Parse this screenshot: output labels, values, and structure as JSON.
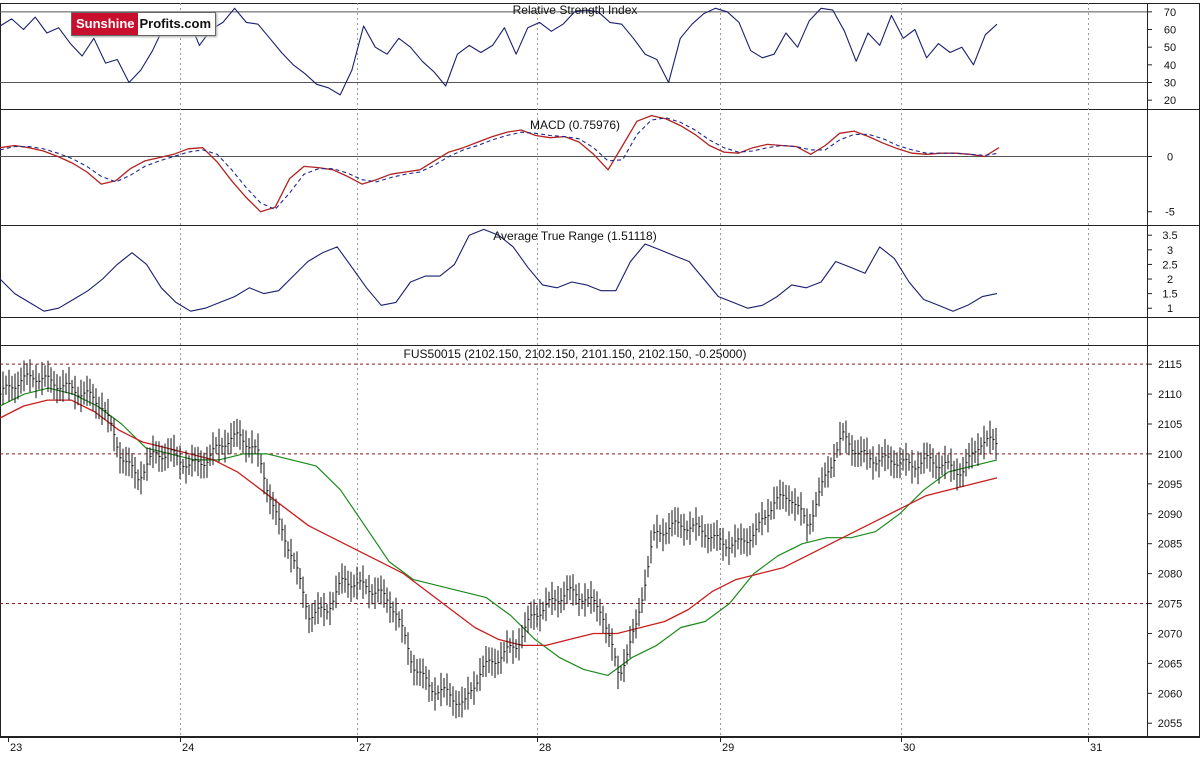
{
  "logo": {
    "part1": "Sunshine",
    "part2": "Profits.com"
  },
  "x_labels": [
    "23",
    "24",
    "27",
    "28",
    "29",
    "30",
    "31"
  ],
  "chart_data": [
    {
      "type": "line",
      "title": "Relative Strength Index",
      "yticks": [
        70,
        60,
        50,
        40,
        30,
        20
      ],
      "ylim": [
        15,
        75
      ],
      "reference_lines": [
        70,
        30
      ],
      "series": [
        {
          "values": [
            62,
            66,
            60,
            67,
            58,
            61,
            52,
            45,
            55,
            41,
            43,
            30,
            37,
            48,
            62,
            57,
            67,
            51,
            60,
            64,
            72,
            64,
            63,
            55,
            47,
            40,
            35,
            29,
            27,
            23,
            37,
            62,
            50,
            46,
            55,
            50,
            42,
            36,
            28,
            46,
            51,
            47,
            51,
            61,
            46,
            61,
            64,
            59,
            63,
            70,
            71,
            70,
            64,
            63,
            55,
            46,
            43,
            30,
            55,
            63,
            69,
            72,
            70,
            64,
            48,
            44,
            46,
            58,
            50,
            65,
            72,
            71,
            59,
            42,
            58,
            51,
            68,
            55,
            60,
            44,
            52,
            47,
            50,
            40,
            57,
            63
          ]
        }
      ]
    },
    {
      "type": "line",
      "title": "MACD (0.75976)",
      "yticks": [
        0,
        -5
      ],
      "ylim": [
        -6.2,
        4.3
      ],
      "reference_lines": [
        0
      ],
      "series": [
        {
          "values": [
            0.8,
            1.0,
            0.8,
            0.5,
            0.0,
            -0.6,
            -1.4,
            -2.5,
            -2.2,
            -1.1,
            -0.4,
            -0.1,
            0.2,
            0.7,
            0.8,
            -0.5,
            -2.2,
            -3.7,
            -5.0,
            -4.6,
            -2.0,
            -0.9,
            -1.0,
            -1.2,
            -1.8,
            -2.5,
            -2.1,
            -1.6,
            -1.4,
            -1.2,
            -0.4,
            0.4,
            0.8,
            1.3,
            1.8,
            2.2,
            2.4,
            1.9,
            1.7,
            1.8,
            1.3,
            0.2,
            -1.2,
            1.0,
            3.2,
            3.7,
            3.4,
            2.8,
            2.0,
            1.0,
            0.4,
            0.3,
            0.8,
            1.1,
            1.0,
            0.9,
            0.2,
            1.0,
            2.1,
            2.3,
            1.8,
            1.2,
            0.7,
            0.3,
            0.2,
            0.3,
            0.3,
            0.2,
            0.0,
            0.8
          ]
        },
        {
          "values": [
            0.6,
            0.9,
            0.9,
            0.7,
            0.3,
            -0.2,
            -0.9,
            -1.8,
            -2.3,
            -1.7,
            -0.9,
            -0.4,
            0.0,
            0.4,
            0.6,
            0.2,
            -1.2,
            -2.8,
            -4.2,
            -4.8,
            -3.3,
            -1.6,
            -1.1,
            -1.1,
            -1.5,
            -2.1,
            -2.3,
            -1.9,
            -1.6,
            -1.4,
            -0.8,
            0.0,
            0.6,
            1.0,
            1.5,
            1.9,
            2.2,
            2.1,
            1.9,
            1.8,
            1.6,
            0.8,
            -0.4,
            -0.3,
            2.0,
            3.3,
            3.5,
            3.1,
            2.4,
            1.5,
            0.8,
            0.4,
            0.5,
            0.8,
            1.0,
            0.9,
            0.6,
            0.6,
            1.5,
            2.0,
            2.0,
            1.6,
            1.0,
            0.6,
            0.3,
            0.3,
            0.3,
            0.2,
            0.1,
            0.3
          ]
        }
      ]
    },
    {
      "type": "line",
      "title": "Average True Range (1.51118)",
      "yticks": [
        3.5,
        3.0,
        2.5,
        2.0,
        1.5,
        1.0
      ],
      "ylim": [
        0.7,
        3.85
      ],
      "series": [
        {
          "values": [
            2.0,
            1.5,
            1.2,
            0.9,
            1.0,
            1.3,
            1.6,
            2.0,
            2.5,
            2.9,
            2.5,
            1.7,
            1.2,
            0.9,
            1.0,
            1.2,
            1.4,
            1.7,
            1.5,
            1.6,
            2.1,
            2.6,
            2.9,
            3.1,
            2.4,
            1.7,
            1.1,
            1.2,
            1.9,
            2.1,
            2.1,
            2.5,
            3.5,
            3.7,
            3.5,
            3.1,
            2.4,
            1.8,
            1.7,
            1.9,
            1.8,
            1.6,
            1.6,
            2.6,
            3.2,
            3.0,
            2.8,
            2.6,
            2.0,
            1.4,
            1.2,
            1.0,
            1.1,
            1.4,
            1.8,
            1.7,
            1.9,
            2.6,
            2.4,
            2.2,
            3.1,
            2.7,
            1.9,
            1.3,
            1.1,
            0.9,
            1.1,
            1.4,
            1.5
          ]
        }
      ]
    },
    {
      "type": "line",
      "title": "FUS50015 (2102.150, 2102.150, 2101.150, 2102.150, -0.25000)",
      "yticks": [
        2115,
        2110,
        2105,
        2100,
        2095,
        2090,
        2085,
        2080,
        2075,
        2070,
        2065,
        2060,
        2055
      ],
      "ylim": [
        2052.7,
        2118.2
      ],
      "reference_lines": [
        2115,
        2100,
        2075
      ],
      "series": [
        {
          "values": [
            2110,
            2112,
            2113,
            2112,
            2111,
            2110,
            2108,
            2100,
            2096,
            2100,
            2100,
            2098,
            2099,
            2102,
            2103,
            2100,
            2090,
            2083,
            2073,
            2074,
            2079,
            2078,
            2077,
            2074,
            2065,
            2061,
            2060,
            2058,
            2064,
            2066,
            2068,
            2073,
            2075,
            2077,
            2076,
            2074,
            2063,
            2071,
            2086,
            2088,
            2088,
            2087,
            2085,
            2085,
            2087,
            2092,
            2093,
            2088,
            2096,
            2103,
            2100,
            2099,
            2099,
            2098,
            2099,
            2098,
            2097,
            2102,
            2102
          ]
        },
        {
          "values": [
            2108,
            2110,
            2111,
            2110,
            2108,
            2105,
            2101,
            2100,
            2099,
            2099,
            2100,
            2100,
            2099,
            2098,
            2094,
            2088,
            2082,
            2079,
            2078,
            2077,
            2076,
            2073,
            2069,
            2066,
            2064,
            2063,
            2066,
            2068,
            2071,
            2072,
            2075,
            2080,
            2083,
            2085,
            2086,
            2086,
            2087,
            2090,
            2094,
            2097,
            2098,
            2099
          ]
        },
        {
          "values": [
            2106,
            2108,
            2109,
            2109,
            2107,
            2104,
            2102,
            2101,
            2100,
            2099,
            2097,
            2094,
            2091,
            2088,
            2086,
            2084,
            2082,
            2080,
            2077,
            2074,
            2071,
            2069,
            2068,
            2068,
            2069,
            2070,
            2070,
            2071,
            2072,
            2074,
            2077,
            2079,
            2080,
            2081,
            2083,
            2085,
            2087,
            2089,
            2091,
            2093,
            2094,
            2095,
            2096
          ]
        }
      ]
    }
  ],
  "colors": {
    "indicator": "#1a1f6e",
    "macd": "#b22222",
    "signal": "#1d2a8f",
    "price": "#111111",
    "ma_fast": "#1c8a1c",
    "ma_slow": "#c81e1e",
    "ref_line": "#8b1a1a"
  }
}
